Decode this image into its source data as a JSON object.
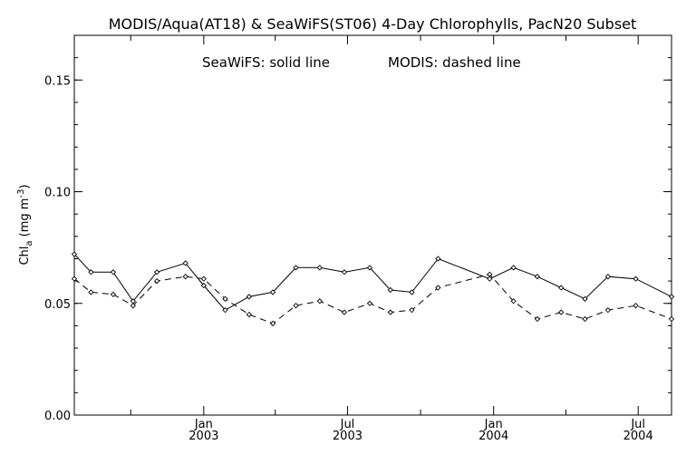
{
  "chart_data": {
    "type": "line",
    "title": "MODIS/Aqua(AT18) & SeaWiFS(ST06) 4-Day Chlorophylls, PacN20 Subset",
    "annotations": {
      "seawifs": "SeaWiFS: solid line",
      "modis": "MODIS: dashed line"
    },
    "ylabel": {
      "main": "Chl",
      "subscript": "a",
      "unit_open": " (mg m",
      "unit_sup": "-3",
      "unit_close": ")"
    },
    "xlabel": "",
    "ylim": [
      0.0,
      0.17
    ],
    "xlim": [
      "2002-07-22",
      "2004-08-12"
    ],
    "y_ticks": [
      {
        "value": 0.0,
        "label": "0.00"
      },
      {
        "value": 0.05,
        "label": "0.05"
      },
      {
        "value": 0.1,
        "label": "0.10"
      },
      {
        "value": 0.15,
        "label": "0.15"
      }
    ],
    "x_ticks": [
      {
        "date": "2003-01-01",
        "month": "Jan",
        "year": "2003"
      },
      {
        "date": "2003-07-01",
        "month": "Jul",
        "year": "2003"
      },
      {
        "date": "2004-01-01",
        "month": "Jan",
        "year": "2004"
      },
      {
        "date": "2004-07-01",
        "month": "Jul",
        "year": "2004"
      }
    ],
    "x_minor_ticks": [
      "2002-10-01",
      "2003-04-01",
      "2003-10-01",
      "2004-04-01"
    ],
    "series": [
      {
        "name": "SeaWiFS",
        "style": "solid",
        "points": [
          {
            "x": "2002-07-22",
            "y": 0.072
          },
          {
            "x": "2002-08-12",
            "y": 0.064
          },
          {
            "x": "2002-09-09",
            "y": 0.064
          },
          {
            "x": "2002-10-04",
            "y": 0.051
          },
          {
            "x": "2002-11-03",
            "y": 0.064
          },
          {
            "x": "2002-12-09",
            "y": 0.068
          },
          {
            "x": "2003-01-01",
            "y": 0.058
          },
          {
            "x": "2003-01-28",
            "y": 0.047
          },
          {
            "x": "2003-02-27",
            "y": 0.053
          },
          {
            "x": "2003-03-29",
            "y": 0.055
          },
          {
            "x": "2003-04-27",
            "y": 0.066
          },
          {
            "x": "2003-05-27",
            "y": 0.066
          },
          {
            "x": "2003-06-27",
            "y": 0.064
          },
          {
            "x": "2003-07-29",
            "y": 0.066
          },
          {
            "x": "2003-08-24",
            "y": 0.056
          },
          {
            "x": "2003-09-20",
            "y": 0.055
          },
          {
            "x": "2003-10-23",
            "y": 0.07
          },
          {
            "x": "2003-12-27",
            "y": 0.061
          },
          {
            "x": "2004-01-26",
            "y": 0.066
          },
          {
            "x": "2004-02-25",
            "y": 0.062
          },
          {
            "x": "2004-03-26",
            "y": 0.057
          },
          {
            "x": "2004-04-25",
            "y": 0.052
          },
          {
            "x": "2004-05-24",
            "y": 0.062
          },
          {
            "x": "2004-06-28",
            "y": 0.061
          },
          {
            "x": "2004-08-12",
            "y": 0.053
          }
        ]
      },
      {
        "name": "MODIS",
        "style": "dashed",
        "points": [
          {
            "x": "2002-07-22",
            "y": 0.061
          },
          {
            "x": "2002-08-12",
            "y": 0.055
          },
          {
            "x": "2002-09-09",
            "y": 0.054
          },
          {
            "x": "2002-10-04",
            "y": 0.049
          },
          {
            "x": "2002-11-03",
            "y": 0.06
          },
          {
            "x": "2002-12-09",
            "y": 0.062
          },
          {
            "x": "2003-01-01",
            "y": 0.061
          },
          {
            "x": "2003-01-28",
            "y": 0.052
          },
          {
            "x": "2003-02-27",
            "y": 0.045
          },
          {
            "x": "2003-03-29",
            "y": 0.041
          },
          {
            "x": "2003-04-27",
            "y": 0.049
          },
          {
            "x": "2003-05-27",
            "y": 0.051
          },
          {
            "x": "2003-06-27",
            "y": 0.046
          },
          {
            "x": "2003-07-29",
            "y": 0.05
          },
          {
            "x": "2003-08-24",
            "y": 0.046
          },
          {
            "x": "2003-09-20",
            "y": 0.047
          },
          {
            "x": "2003-10-23",
            "y": 0.057
          },
          {
            "x": "2003-12-27",
            "y": 0.063
          },
          {
            "x": "2004-01-26",
            "y": 0.051
          },
          {
            "x": "2004-02-25",
            "y": 0.043
          },
          {
            "x": "2004-03-26",
            "y": 0.046
          },
          {
            "x": "2004-04-25",
            "y": 0.043
          },
          {
            "x": "2004-05-24",
            "y": 0.047
          },
          {
            "x": "2004-06-28",
            "y": 0.049
          },
          {
            "x": "2004-08-12",
            "y": 0.043
          }
        ]
      }
    ],
    "grid": false,
    "colors": {
      "line": "#000000",
      "background": "#ffffff"
    }
  }
}
